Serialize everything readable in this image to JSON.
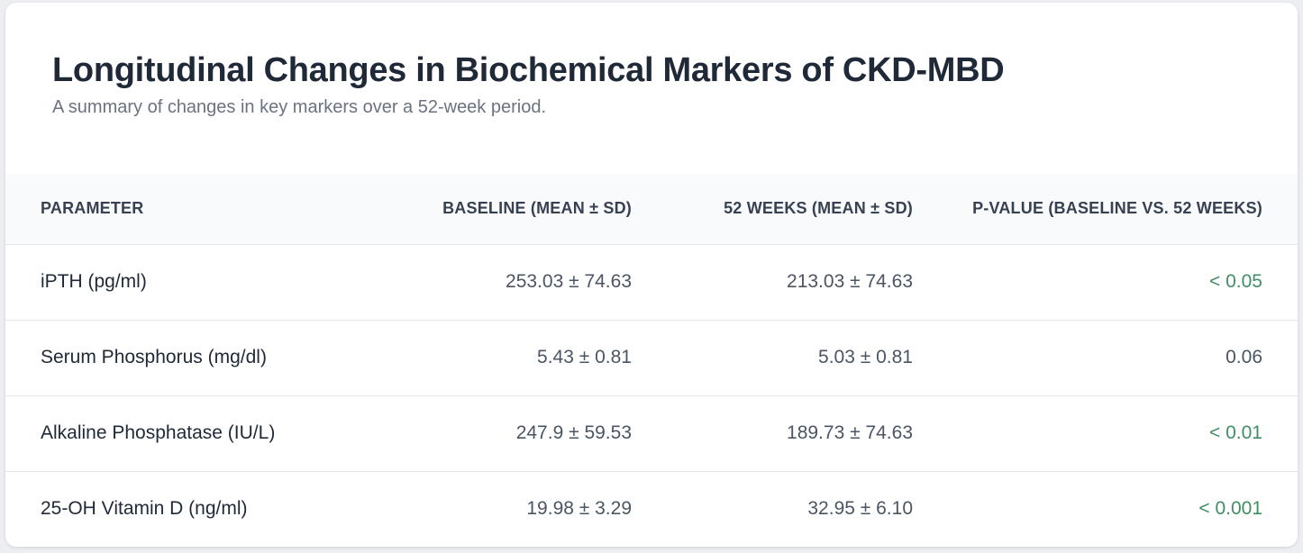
{
  "header": {
    "title": "Longitudinal Changes in Biochemical Markers of CKD-MBD",
    "subtitle": "A summary of changes in key markers over a 52-week period."
  },
  "table": {
    "columns": [
      "Parameter",
      "Baseline (Mean ± SD)",
      "52 Weeks (Mean ± SD)",
      "P-Value (Baseline vs. 52 Weeks)"
    ],
    "rows": [
      {
        "parameter": "iPTH (pg/ml)",
        "baseline": "253.03 ± 74.63",
        "week52": "213.03 ± 74.63",
        "pvalue": "< 0.05",
        "significant": true
      },
      {
        "parameter": "Serum Phosphorus (mg/dl)",
        "baseline": "5.43 ± 0.81",
        "week52": "5.03 ± 0.81",
        "pvalue": "0.06",
        "significant": false
      },
      {
        "parameter": "Alkaline Phosphatase (IU/L)",
        "baseline": "247.9 ± 59.53",
        "week52": "189.73 ± 74.63",
        "pvalue": "< 0.01",
        "significant": true
      },
      {
        "parameter": "25-OH Vitamin D (ng/ml)",
        "baseline": "19.98 ± 3.29",
        "week52": "32.95 ± 6.10",
        "pvalue": "< 0.001",
        "significant": true
      }
    ]
  },
  "colors": {
    "significant": "#3f8f66",
    "text": "#1f2937",
    "muted": "#6b7280"
  }
}
